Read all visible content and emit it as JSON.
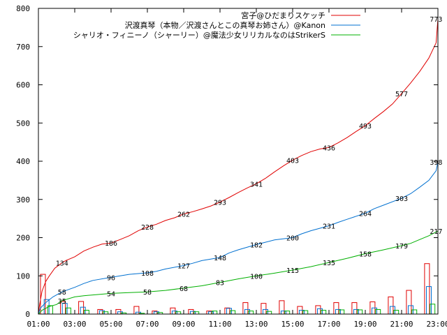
{
  "chart_data": {
    "type": "line",
    "title": "",
    "xlabel": "",
    "ylabel": "",
    "ylim": [
      0,
      800
    ],
    "xlim": [
      "01:00",
      "23:00"
    ],
    "grid": false,
    "legend_position": "top-right",
    "x_ticks": [
      "01:00",
      "03:00",
      "05:00",
      "07:00",
      "09:00",
      "11:00",
      "13:00",
      "15:00",
      "17:00",
      "19:00",
      "21:00",
      "23:00"
    ],
    "y_ticks": [
      0,
      100,
      200,
      300,
      400,
      500,
      600,
      700,
      800
    ],
    "series": [
      {
        "name": "宮子@ひだまりスケッチ",
        "color": "#e00000",
        "cumulative": [
          [
            1.0,
            0
          ],
          [
            1.05,
            20
          ],
          [
            1.2,
            60
          ],
          [
            1.4,
            85
          ],
          [
            1.6,
            100
          ],
          [
            1.9,
            120
          ],
          [
            2.3,
            134
          ],
          [
            2.5,
            140
          ],
          [
            3.0,
            150
          ],
          [
            3.5,
            165
          ],
          [
            4.0,
            175
          ],
          [
            4.5,
            183
          ],
          [
            5.0,
            186
          ],
          [
            5.5,
            195
          ],
          [
            6.0,
            205
          ],
          [
            6.5,
            218
          ],
          [
            7.0,
            228
          ],
          [
            7.5,
            235
          ],
          [
            8.0,
            245
          ],
          [
            8.5,
            252
          ],
          [
            9.0,
            262
          ],
          [
            9.5,
            268
          ],
          [
            10.0,
            275
          ],
          [
            10.5,
            283
          ],
          [
            11.0,
            293
          ],
          [
            11.5,
            305
          ],
          [
            12.0,
            318
          ],
          [
            12.5,
            330
          ],
          [
            13.0,
            341
          ],
          [
            13.5,
            355
          ],
          [
            14.0,
            372
          ],
          [
            14.5,
            388
          ],
          [
            15.0,
            403
          ],
          [
            15.5,
            415
          ],
          [
            16.0,
            425
          ],
          [
            16.5,
            432
          ],
          [
            17.0,
            436
          ],
          [
            17.5,
            448
          ],
          [
            18.0,
            462
          ],
          [
            18.5,
            478
          ],
          [
            19.0,
            493
          ],
          [
            19.5,
            512
          ],
          [
            20.0,
            530
          ],
          [
            20.5,
            550
          ],
          [
            21.0,
            577
          ],
          [
            21.5,
            605
          ],
          [
            22.0,
            635
          ],
          [
            22.5,
            670
          ],
          [
            22.9,
            710
          ],
          [
            23.0,
            773
          ]
        ],
        "labels": [
          [
            2.3,
            134
          ],
          [
            5.0,
            186
          ],
          [
            7.0,
            228
          ],
          [
            9.0,
            262
          ],
          [
            11.0,
            293
          ],
          [
            13.0,
            341
          ],
          [
            15.0,
            403
          ],
          [
            17.0,
            436
          ],
          [
            19.0,
            493
          ],
          [
            21.0,
            577
          ],
          [
            22.9,
            773
          ]
        ],
        "bars": [
          [
            1.25,
            104
          ],
          [
            2.35,
            33
          ],
          [
            3.35,
            33
          ],
          [
            4.4,
            12
          ],
          [
            5.4,
            12
          ],
          [
            6.4,
            20
          ],
          [
            7.4,
            8
          ],
          [
            8.4,
            16
          ],
          [
            9.4,
            12
          ],
          [
            10.4,
            8
          ],
          [
            11.4,
            16
          ],
          [
            12.4,
            30
          ],
          [
            13.4,
            28
          ],
          [
            14.4,
            35
          ],
          [
            15.4,
            20
          ],
          [
            16.4,
            22
          ],
          [
            17.4,
            30
          ],
          [
            18.4,
            30
          ],
          [
            19.4,
            32
          ],
          [
            20.4,
            45
          ],
          [
            21.4,
            62
          ],
          [
            22.4,
            132
          ]
        ]
      },
      {
        "name": "沢渡真琴（本物／沢渡さんとこの真琴お姉さん）@Kanon",
        "color": "#0070d0",
        "cumulative": [
          [
            1.0,
            0
          ],
          [
            1.1,
            15
          ],
          [
            1.4,
            30
          ],
          [
            1.8,
            45
          ],
          [
            2.3,
            58
          ],
          [
            3.0,
            70
          ],
          [
            3.5,
            80
          ],
          [
            4.0,
            88
          ],
          [
            5.0,
            96
          ],
          [
            5.5,
            100
          ],
          [
            6.0,
            104
          ],
          [
            7.0,
            108
          ],
          [
            7.5,
            112
          ],
          [
            8.0,
            118
          ],
          [
            9.0,
            127
          ],
          [
            9.5,
            133
          ],
          [
            10.0,
            140
          ],
          [
            11.0,
            148
          ],
          [
            11.5,
            160
          ],
          [
            12.0,
            168
          ],
          [
            13.0,
            182
          ],
          [
            13.5,
            188
          ],
          [
            14.0,
            194
          ],
          [
            15.0,
            200
          ],
          [
            15.5,
            210
          ],
          [
            16.0,
            218
          ],
          [
            17.0,
            231
          ],
          [
            17.5,
            240
          ],
          [
            18.0,
            248
          ],
          [
            19.0,
            264
          ],
          [
            19.5,
            276
          ],
          [
            20.0,
            285
          ],
          [
            21.0,
            303
          ],
          [
            21.5,
            315
          ],
          [
            22.0,
            332
          ],
          [
            22.5,
            350
          ],
          [
            22.9,
            375
          ],
          [
            23.0,
            398
          ]
        ],
        "labels": [
          [
            2.3,
            58
          ],
          [
            5.0,
            96
          ],
          [
            7.0,
            108
          ],
          [
            9.0,
            127
          ],
          [
            11.0,
            148
          ],
          [
            13.0,
            182
          ],
          [
            15.0,
            200
          ],
          [
            17.0,
            231
          ],
          [
            19.0,
            264
          ],
          [
            21.0,
            303
          ],
          [
            22.9,
            398
          ]
        ],
        "bars": [
          [
            1.45,
            38
          ],
          [
            2.45,
            28
          ],
          [
            3.45,
            18
          ],
          [
            4.5,
            9
          ],
          [
            5.5,
            6
          ],
          [
            6.5,
            5
          ],
          [
            7.5,
            6
          ],
          [
            8.5,
            8
          ],
          [
            9.5,
            7
          ],
          [
            10.5,
            6
          ],
          [
            11.5,
            15
          ],
          [
            12.5,
            12
          ],
          [
            13.5,
            12
          ],
          [
            14.5,
            8
          ],
          [
            15.5,
            10
          ],
          [
            16.5,
            14
          ],
          [
            17.5,
            12
          ],
          [
            18.5,
            12
          ],
          [
            19.5,
            16
          ],
          [
            20.5,
            20
          ],
          [
            21.5,
            22
          ],
          [
            22.5,
            72
          ]
        ]
      },
      {
        "name": "シャリオ・フィニーノ（シャーリー）@魔法少女リリカルなのはStrikerS",
        "color": "#00b000",
        "cumulative": [
          [
            1.0,
            0
          ],
          [
            1.2,
            10
          ],
          [
            1.6,
            20
          ],
          [
            2.0,
            25
          ],
          [
            2.3,
            35
          ],
          [
            3.0,
            45
          ],
          [
            3.5,
            48
          ],
          [
            4.0,
            50
          ],
          [
            5.0,
            54
          ],
          [
            6.0,
            56
          ],
          [
            7.0,
            58
          ],
          [
            8.0,
            62
          ],
          [
            9.0,
            68
          ],
          [
            10.0,
            74
          ],
          [
            11.0,
            83
          ],
          [
            12.0,
            92
          ],
          [
            13.0,
            100
          ],
          [
            14.0,
            107
          ],
          [
            15.0,
            115
          ],
          [
            16.0,
            124
          ],
          [
            17.0,
            135
          ],
          [
            18.0,
            146
          ],
          [
            19.0,
            158
          ],
          [
            20.0,
            168
          ],
          [
            21.0,
            179
          ],
          [
            21.5,
            185
          ],
          [
            22.0,
            195
          ],
          [
            22.5,
            205
          ],
          [
            22.9,
            215
          ],
          [
            23.0,
            217
          ]
        ],
        "labels": [
          [
            2.3,
            35
          ],
          [
            5.0,
            54
          ],
          [
            7.0,
            58
          ],
          [
            9.0,
            68
          ],
          [
            11.0,
            83
          ],
          [
            13.0,
            100
          ],
          [
            15.0,
            115
          ],
          [
            17.0,
            135
          ],
          [
            19.0,
            158
          ],
          [
            21.0,
            179
          ],
          [
            22.9,
            217
          ]
        ],
        "bars": [
          [
            1.65,
            22
          ],
          [
            2.65,
            16
          ],
          [
            3.65,
            10
          ],
          [
            4.7,
            6
          ],
          [
            5.7,
            3
          ],
          [
            6.7,
            2
          ],
          [
            7.7,
            4
          ],
          [
            8.7,
            6
          ],
          [
            9.7,
            6
          ],
          [
            10.7,
            8
          ],
          [
            11.7,
            9
          ],
          [
            12.7,
            8
          ],
          [
            13.7,
            7
          ],
          [
            14.7,
            8
          ],
          [
            15.7,
            9
          ],
          [
            16.7,
            10
          ],
          [
            17.7,
            11
          ],
          [
            18.7,
            11
          ],
          [
            19.7,
            12
          ],
          [
            20.7,
            10
          ],
          [
            21.7,
            11
          ],
          [
            22.7,
            26
          ]
        ]
      }
    ]
  }
}
